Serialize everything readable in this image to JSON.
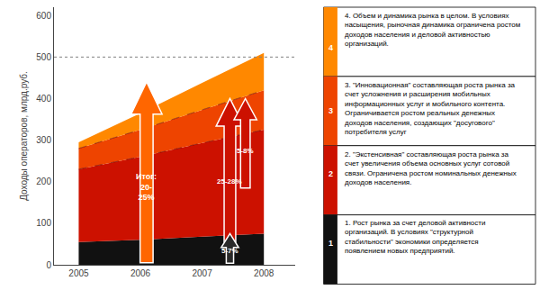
{
  "chart_data": {
    "type": "area",
    "stacked": true,
    "ylabel": "Доходы операторов, млрд.руб.",
    "x": [
      2005,
      2006,
      2007,
      2008
    ],
    "series": [
      {
        "name": "1. Рост рынка за счет деловой активности организаций. В условиях \"структурной стабильности\" экономики определяется появлением новых предприятий.",
        "number": "1",
        "color": "#111111",
        "values": [
          55,
          60,
          68,
          75
        ]
      },
      {
        "name": "2. \"Экстенсивная\" составляющая роста рынка за счет увеличения объема основных услуг сотовой связи. Ограничена ростом номинальных денежных доходов населения.",
        "number": "2",
        "color": "#cc1100",
        "values": [
          175,
          200,
          225,
          250
        ]
      },
      {
        "name": "3. \"Инновационная\" составляющая роста рынка за счет усложнения и расширения мобильных информационных услуг и мобильного контента. Ограничивается ростом реальных денежных доходов населения, создающих \"досугового\" потребителя услуг",
        "number": "3",
        "color": "#ee4400",
        "values": [
          50,
          65,
          80,
          95
        ]
      },
      {
        "name": "4. Объем и динамика рынка в целом. В условиях насыщения, рыночная динамика ограничена ростом доходов населения и деловой активностью организаций.",
        "number": "4",
        "color": "#ff8800",
        "values": [
          15,
          40,
          65,
          90
        ]
      }
    ],
    "xlim": [
      2004.6,
      2008.5
    ],
    "xticks": [
      2005,
      2006,
      2007,
      2008
    ],
    "ylim": [
      0,
      620
    ],
    "yticks": [
      0,
      100,
      200,
      300,
      400,
      500,
      600
    ],
    "grid": false,
    "hline": 500,
    "annotations": [
      {
        "text": "Итог:\n20-\n25%",
        "x": 2006.1,
        "y_from": 5,
        "y_to": 440,
        "color": "#ff6600"
      },
      {
        "text": "25-28%",
        "x": 2007.45,
        "y_from": 55,
        "y_to": 400,
        "color": "#cc1100"
      },
      {
        "text": "5-8%",
        "x": 2007.7,
        "y_from": 185,
        "y_to": 400,
        "color": "#cc1100"
      },
      {
        "text": "5-7%",
        "x": 2007.45,
        "y_from": 4,
        "y_to": 75,
        "color": "#2a2a2a"
      }
    ]
  }
}
